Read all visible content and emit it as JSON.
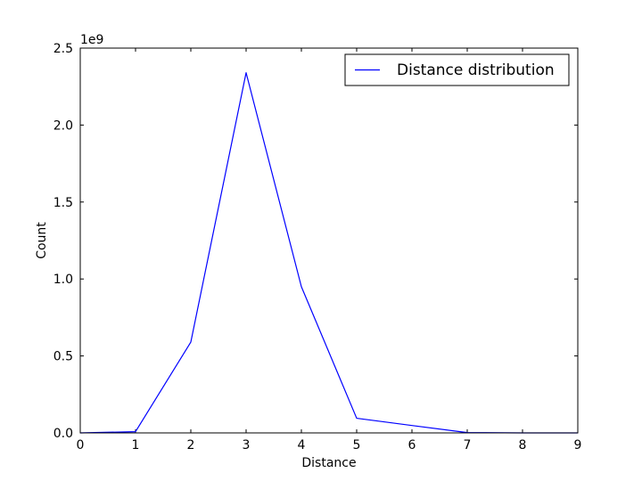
{
  "chart_data": {
    "type": "line",
    "xlabel": "Distance",
    "ylabel": "Count",
    "y_offset_label": "1e9",
    "xlim": [
      0,
      9
    ],
    "ylim": [
      0,
      2.5
    ],
    "y_scale_multiplier": 1000000000,
    "grid": false,
    "legend_position": "top-right",
    "x_ticks": [
      0,
      1,
      2,
      3,
      4,
      5,
      6,
      7,
      8,
      9
    ],
    "x_tick_labels": [
      "0",
      "1",
      "2",
      "3",
      "4",
      "5",
      "6",
      "7",
      "8",
      "9"
    ],
    "y_ticks": [
      0,
      0.5,
      1.0,
      1.5,
      2.0,
      2.5
    ],
    "y_tick_labels": [
      "0.0",
      "0.5",
      "1.0",
      "1.5",
      "2.0",
      "2.5"
    ],
    "series": [
      {
        "name": "Distance distribution",
        "color": "#0000ff",
        "x": [
          0,
          1,
          2,
          3,
          4,
          5,
          6,
          7,
          8,
          9
        ],
        "values": [
          0.0,
          0.008,
          0.59,
          2.34,
          0.95,
          0.095,
          0.048,
          0.002,
          0.0,
          0.0
        ]
      }
    ]
  }
}
